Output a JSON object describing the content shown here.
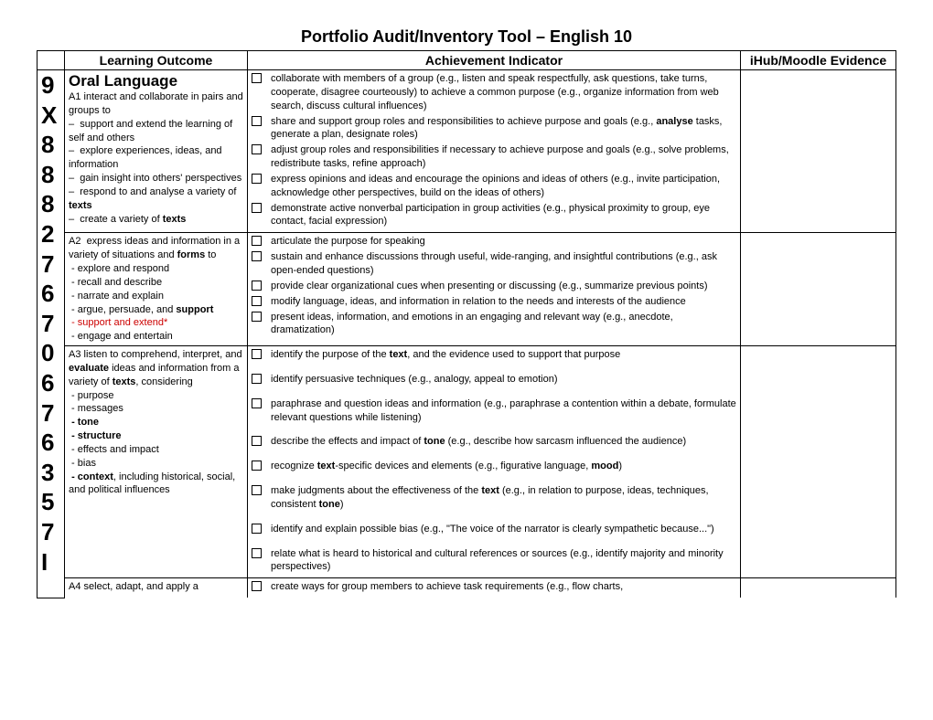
{
  "title": "Portfolio Audit/Inventory Tool – English 10",
  "headers": {
    "outcome": "Learning Outcome",
    "indicator": "Achievement Indicator",
    "evidence": "iHub/Moodle Evidence"
  },
  "sidebar_numbers": [
    "9",
    "X",
    "8",
    "8",
    "8",
    "2",
    "7",
    "6",
    "7",
    "0",
    "6",
    "7",
    "6",
    "3",
    "5",
    "7",
    "I"
  ],
  "section_heading": "Oral Language",
  "rows": [
    {
      "outcome_html": "A1 interact and collaborate in pairs and groups to<br>– &nbsp;support and extend the learning of self and others<br>– &nbsp;explore experiences, ideas, and information<br>– &nbsp;gain insight into others' perspectives<br>– &nbsp;respond to and analyse a variety of <b>texts</b><br>– &nbsp;create a variety of <b>texts</b>",
      "indicators": [
        "collaborate with members of a group (e.g., listen and speak respectfully, ask questions, take turns, cooperate, disagree courteously) to achieve a common purpose (e.g., organize information from web search, discuss cultural influences)",
        "share and support group roles and responsibilities to achieve purpose and goals (e.g., <b>analyse</b> tasks, generate a plan, designate roles)",
        "adjust group roles and responsibilities if necessary to achieve purpose and goals (e.g., solve problems, redistribute tasks, refine approach)",
        "express opinions and ideas and encourage the opinions and ideas of others (e.g., invite participation, acknowledge other perspectives, build on the ideas of others)",
        "demonstrate active nonverbal participation in group activities (e.g., physical proximity to group, eye contact, facial expression)"
      ]
    },
    {
      "outcome_html": "A2 &nbsp;express ideas and information in a variety of situations and <b>forms</b> to<br>&nbsp;- explore and respond<br>&nbsp;- recall and describe<br>&nbsp;- narrate and explain<br>&nbsp;- argue, persuade, and <b>support</b><br>&nbsp;<span class='red'>- support and extend*</span><br>&nbsp;- engage and entertain",
      "indicators": [
        "articulate the purpose for speaking",
        "sustain and enhance discussions through useful, wide-ranging, and insightful contributions (e.g., ask open-ended questions)",
        "provide clear organizational cues when presenting or discussing (e.g., summarize previous points)",
        "modify language, ideas, and information in relation to the needs and interests of the audience",
        "present ideas, information, and emotions in an engaging and relevant way (e.g., anecdote, dramatization)"
      ]
    },
    {
      "outcome_html": "A3 listen to comprehend, interpret, and <b>evaluate</b> ideas and information from a variety of <b>texts</b>, considering<br>&nbsp;- purpose<br>&nbsp;- messages<br>&nbsp;<b>- tone</b><br>&nbsp;<b>- structure</b><br>&nbsp;- effects and impact<br>&nbsp;- bias<br>&nbsp;<b>- context</b>, including historical, social, and political influences",
      "indicators": [
        "identify the purpose of the <b>text</b>, and the evidence used to support that purpose",
        "",
        "identify persuasive techniques (e.g., analogy, appeal to emotion)",
        "",
        "paraphrase and question ideas and information (e.g., paraphrase a contention within a debate, formulate relevant questions while listening)",
        "",
        "describe the effects and impact of <b>tone</b> (e.g., describe how sarcasm influenced the audience)",
        "",
        "recognize <b>text</b>-specific devices and elements (e.g., figurative language, <b>mood</b>)",
        "",
        "make judgments about the effectiveness of the <b>text</b> (e.g., in relation to purpose, ideas, techniques, consistent <b>tone</b>)",
        "",
        "identify and explain possible bias (e.g., \"The voice of the narrator is clearly sympathetic because...\")",
        "",
        "relate what is heard to historical and cultural references or sources (e.g., identify majority and minority perspectives)"
      ],
      "spaced": true
    },
    {
      "outcome_html": "A4 select, adapt, and apply a",
      "indicators": [
        "create ways for group members to achieve task requirements (e.g., flow charts,"
      ],
      "partial": true
    }
  ]
}
